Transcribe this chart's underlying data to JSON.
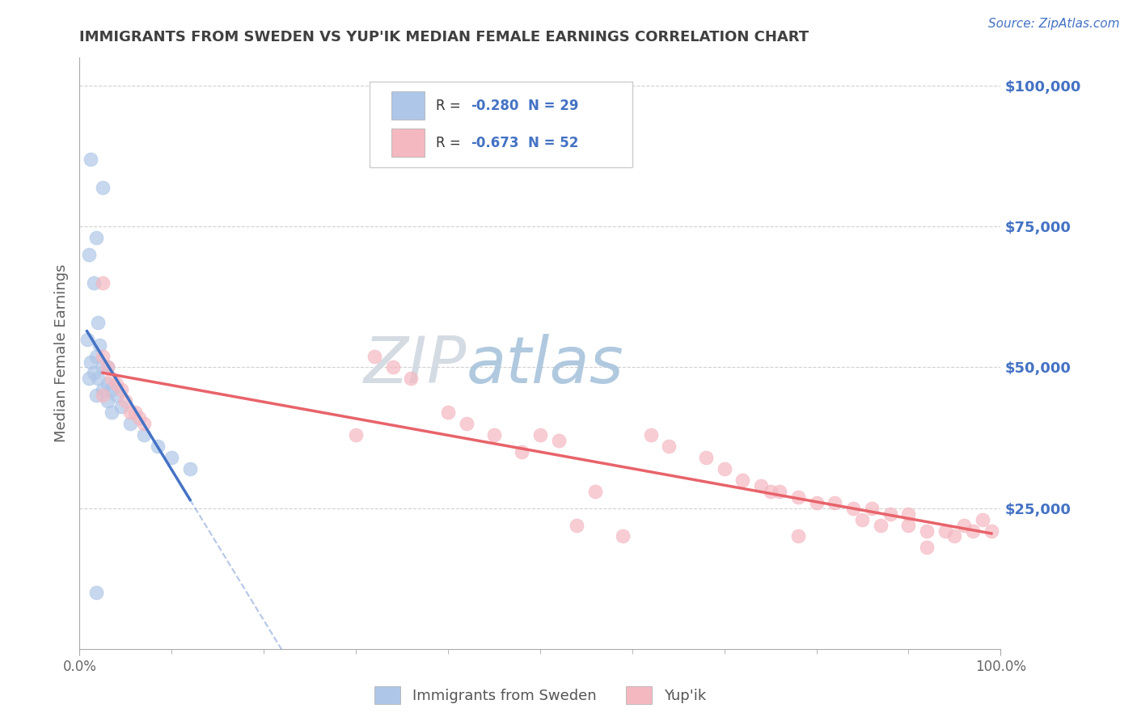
{
  "title": "IMMIGRANTS FROM SWEDEN VS YUP'IK MEDIAN FEMALE EARNINGS CORRELATION CHART",
  "source": "Source: ZipAtlas.com",
  "ylabel": "Median Female Earnings",
  "legend_labels": [
    "Immigrants from Sweden",
    "Yup'ik"
  ],
  "r_sweden": -0.28,
  "n_sweden": 29,
  "r_yupik": -0.673,
  "n_yupik": 52,
  "xlim": [
    0.0,
    1.0
  ],
  "ylim": [
    0,
    105000
  ],
  "yticks": [
    25000,
    50000,
    75000,
    100000
  ],
  "ytick_labels": [
    "$25,000",
    "$50,000",
    "$75,000",
    "$100,000"
  ],
  "xtick_labels": [
    "0.0%",
    "100.0%"
  ],
  "background_color": "#ffffff",
  "grid_color": "#cccccc",
  "sweden_color": "#aec6e8",
  "sweden_line_color": "#4472c4",
  "yupik_color": "#f4b8c1",
  "yupik_line_color": "#e8636a",
  "watermark_color": "#c8d8e8",
  "title_color": "#404040",
  "axis_label_color": "#606060",
  "legend_r_color": "#4472c4",
  "sweden_scatter": [
    [
      0.012,
      87000
    ],
    [
      0.025,
      82000
    ],
    [
      0.018,
      73000
    ],
    [
      0.01,
      70000
    ],
    [
      0.015,
      65000
    ],
    [
      0.02,
      58000
    ],
    [
      0.008,
      55000
    ],
    [
      0.022,
      54000
    ],
    [
      0.018,
      52000
    ],
    [
      0.012,
      51000
    ],
    [
      0.025,
      50000
    ],
    [
      0.03,
      50000
    ],
    [
      0.015,
      49000
    ],
    [
      0.02,
      48000
    ],
    [
      0.01,
      48000
    ],
    [
      0.03,
      47000
    ],
    [
      0.025,
      46000
    ],
    [
      0.035,
      46000
    ],
    [
      0.018,
      45000
    ],
    [
      0.04,
      45000
    ],
    [
      0.03,
      44000
    ],
    [
      0.045,
      43000
    ],
    [
      0.035,
      42000
    ],
    [
      0.055,
      40000
    ],
    [
      0.07,
      38000
    ],
    [
      0.085,
      36000
    ],
    [
      0.1,
      34000
    ],
    [
      0.12,
      32000
    ],
    [
      0.018,
      10000
    ]
  ],
  "yupik_scatter": [
    [
      0.025,
      65000
    ],
    [
      0.025,
      52000
    ],
    [
      0.03,
      50000
    ],
    [
      0.035,
      48000
    ],
    [
      0.04,
      47000
    ],
    [
      0.045,
      46000
    ],
    [
      0.025,
      45000
    ],
    [
      0.05,
      44000
    ],
    [
      0.055,
      42000
    ],
    [
      0.06,
      42000
    ],
    [
      0.065,
      41000
    ],
    [
      0.07,
      40000
    ],
    [
      0.3,
      38000
    ],
    [
      0.32,
      52000
    ],
    [
      0.34,
      50000
    ],
    [
      0.36,
      48000
    ],
    [
      0.4,
      42000
    ],
    [
      0.42,
      40000
    ],
    [
      0.45,
      38000
    ],
    [
      0.48,
      35000
    ],
    [
      0.5,
      38000
    ],
    [
      0.52,
      37000
    ],
    [
      0.54,
      22000
    ],
    [
      0.56,
      28000
    ],
    [
      0.59,
      20000
    ],
    [
      0.62,
      38000
    ],
    [
      0.64,
      36000
    ],
    [
      0.68,
      34000
    ],
    [
      0.7,
      32000
    ],
    [
      0.72,
      30000
    ],
    [
      0.74,
      29000
    ],
    [
      0.75,
      28000
    ],
    [
      0.76,
      28000
    ],
    [
      0.78,
      27000
    ],
    [
      0.8,
      26000
    ],
    [
      0.82,
      26000
    ],
    [
      0.84,
      25000
    ],
    [
      0.86,
      25000
    ],
    [
      0.88,
      24000
    ],
    [
      0.9,
      24000
    ],
    [
      0.85,
      23000
    ],
    [
      0.87,
      22000
    ],
    [
      0.9,
      22000
    ],
    [
      0.92,
      21000
    ],
    [
      0.94,
      21000
    ],
    [
      0.95,
      20000
    ],
    [
      0.96,
      22000
    ],
    [
      0.97,
      21000
    ],
    [
      0.98,
      23000
    ],
    [
      0.99,
      21000
    ],
    [
      0.78,
      20000
    ],
    [
      0.92,
      18000
    ]
  ]
}
